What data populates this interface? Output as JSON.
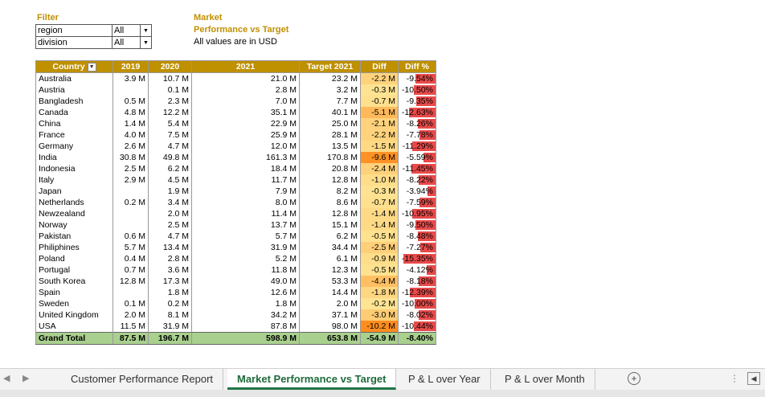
{
  "filter": {
    "title": "Filter",
    "rows": [
      {
        "name": "region",
        "value": "All"
      },
      {
        "name": "division",
        "value": "All"
      }
    ]
  },
  "header": {
    "line1": "Market",
    "line2": "Performance vs Target",
    "line3": "All values are in USD"
  },
  "table": {
    "columns": [
      "Country",
      "2019",
      "2020",
      "2021",
      "Target 2021",
      "Diff",
      "Diff %"
    ],
    "rows": [
      {
        "country": "Australia",
        "y2019": "3.9 M",
        "y2020": "10.7 M",
        "y2021": "21.0 M",
        "target": "23.2 M",
        "diff": "-2.2 M",
        "pct": "-9.54%",
        "pctval": -9.54,
        "diffval": -2.2
      },
      {
        "country": "Austria",
        "y2019": "",
        "y2020": "0.1 M",
        "y2021": "2.8 M",
        "target": "3.2 M",
        "diff": "-0.3 M",
        "pct": "-10.50%",
        "pctval": -10.5,
        "diffval": -0.3
      },
      {
        "country": "Bangladesh",
        "y2019": "0.5 M",
        "y2020": "2.3 M",
        "y2021": "7.0 M",
        "target": "7.7 M",
        "diff": "-0.7 M",
        "pct": "-9.35%",
        "pctval": -9.35,
        "diffval": -0.7
      },
      {
        "country": "Canada",
        "y2019": "4.8 M",
        "y2020": "12.2 M",
        "y2021": "35.1 M",
        "target": "40.1 M",
        "diff": "-5.1 M",
        "pct": "-12.63%",
        "pctval": -12.63,
        "diffval": -5.1
      },
      {
        "country": "China",
        "y2019": "1.4 M",
        "y2020": "5.4 M",
        "y2021": "22.9 M",
        "target": "25.0 M",
        "diff": "-2.1 M",
        "pct": "-8.26%",
        "pctval": -8.26,
        "diffval": -2.1
      },
      {
        "country": "France",
        "y2019": "4.0 M",
        "y2020": "7.5 M",
        "y2021": "25.9 M",
        "target": "28.1 M",
        "diff": "-2.2 M",
        "pct": "-7.78%",
        "pctval": -7.78,
        "diffval": -2.2
      },
      {
        "country": "Germany",
        "y2019": "2.6 M",
        "y2020": "4.7 M",
        "y2021": "12.0 M",
        "target": "13.5 M",
        "diff": "-1.5 M",
        "pct": "-11.29%",
        "pctval": -11.29,
        "diffval": -1.5
      },
      {
        "country": "India",
        "y2019": "30.8 M",
        "y2020": "49.8 M",
        "y2021": "161.3 M",
        "target": "170.8 M",
        "diff": "-9.6 M",
        "pct": "-5.59%",
        "pctval": -5.59,
        "diffval": -9.6
      },
      {
        "country": "Indonesia",
        "y2019": "2.5 M",
        "y2020": "6.2 M",
        "y2021": "18.4 M",
        "target": "20.8 M",
        "diff": "-2.4 M",
        "pct": "-11.45%",
        "pctval": -11.45,
        "diffval": -2.4
      },
      {
        "country": "Italy",
        "y2019": "2.9 M",
        "y2020": "4.5 M",
        "y2021": "11.7 M",
        "target": "12.8 M",
        "diff": "-1.0 M",
        "pct": "-8.22%",
        "pctval": -8.22,
        "diffval": -1.0
      },
      {
        "country": "Japan",
        "y2019": "",
        "y2020": "1.9 M",
        "y2021": "7.9 M",
        "target": "8.2 M",
        "diff": "-0.3 M",
        "pct": "-3.94%",
        "pctval": -3.94,
        "diffval": -0.3
      },
      {
        "country": "Netherlands",
        "y2019": "0.2 M",
        "y2020": "3.4 M",
        "y2021": "8.0 M",
        "target": "8.6 M",
        "diff": "-0.7 M",
        "pct": "-7.59%",
        "pctval": -7.59,
        "diffval": -0.7
      },
      {
        "country": "Newzealand",
        "y2019": "",
        "y2020": "2.0 M",
        "y2021": "11.4 M",
        "target": "12.8 M",
        "diff": "-1.4 M",
        "pct": "-10.95%",
        "pctval": -10.95,
        "diffval": -1.4
      },
      {
        "country": "Norway",
        "y2019": "",
        "y2020": "2.5 M",
        "y2021": "13.7 M",
        "target": "15.1 M",
        "diff": "-1.4 M",
        "pct": "-9.50%",
        "pctval": -9.5,
        "diffval": -1.4
      },
      {
        "country": "Pakistan",
        "y2019": "0.6 M",
        "y2020": "4.7 M",
        "y2021": "5.7 M",
        "target": "6.2 M",
        "diff": "-0.5 M",
        "pct": "-8.48%",
        "pctval": -8.48,
        "diffval": -0.5
      },
      {
        "country": "Philiphines",
        "y2019": "5.7 M",
        "y2020": "13.4 M",
        "y2021": "31.9 M",
        "target": "34.4 M",
        "diff": "-2.5 M",
        "pct": "-7.27%",
        "pctval": -7.27,
        "diffval": -2.5
      },
      {
        "country": "Poland",
        "y2019": "0.4 M",
        "y2020": "2.8 M",
        "y2021": "5.2 M",
        "target": "6.1 M",
        "diff": "-0.9 M",
        "pct": "-15.35%",
        "pctval": -15.35,
        "diffval": -0.9
      },
      {
        "country": "Portugal",
        "y2019": "0.7 M",
        "y2020": "3.6 M",
        "y2021": "11.8 M",
        "target": "12.3 M",
        "diff": "-0.5 M",
        "pct": "-4.12%",
        "pctval": -4.12,
        "diffval": -0.5
      },
      {
        "country": "South Korea",
        "y2019": "12.8 M",
        "y2020": "17.3 M",
        "y2021": "49.0 M",
        "target": "53.3 M",
        "diff": "-4.4 M",
        "pct": "-8.18%",
        "pctval": -8.18,
        "diffval": -4.4
      },
      {
        "country": "Spain",
        "y2019": "",
        "y2020": "1.8 M",
        "y2021": "12.6 M",
        "target": "14.4 M",
        "diff": "-1.8 M",
        "pct": "-12.39%",
        "pctval": -12.39,
        "diffval": -1.8
      },
      {
        "country": "Sweden",
        "y2019": "0.1 M",
        "y2020": "0.2 M",
        "y2021": "1.8 M",
        "target": "2.0 M",
        "diff": "-0.2 M",
        "pct": "-10.00%",
        "pctval": -10.0,
        "diffval": -0.2
      },
      {
        "country": "United Kingdom",
        "y2019": "2.0 M",
        "y2020": "8.1 M",
        "y2021": "34.2 M",
        "target": "37.1 M",
        "diff": "-3.0 M",
        "pct": "-8.02%",
        "pctval": -8.02,
        "diffval": -3.0
      },
      {
        "country": "USA",
        "y2019": "11.5 M",
        "y2020": "31.9 M",
        "y2021": "87.8 M",
        "target": "98.0 M",
        "diff": "-10.2 M",
        "pct": "-10.44%",
        "pctval": -10.44,
        "diffval": -10.2
      }
    ],
    "total": {
      "country": "Grand Total",
      "y2019": "87.5 M",
      "y2020": "196.7 M",
      "y2021": "598.9 M",
      "target": "653.8 M",
      "diff": "-54.9 M",
      "pct": "-8.40%"
    }
  },
  "tabs": [
    {
      "label": "Customer Performance Report",
      "active": false
    },
    {
      "label": "Market Performance vs Target",
      "active": true
    },
    {
      "label": "P & L over Year",
      "active": false
    },
    {
      "label": "P & L over Month",
      "active": false
    }
  ],
  "colors": {
    "header_gold": "#bf9000",
    "total_green": "#a9d08e",
    "bar_red": "#e84a4a",
    "tab_active": "#217346"
  }
}
